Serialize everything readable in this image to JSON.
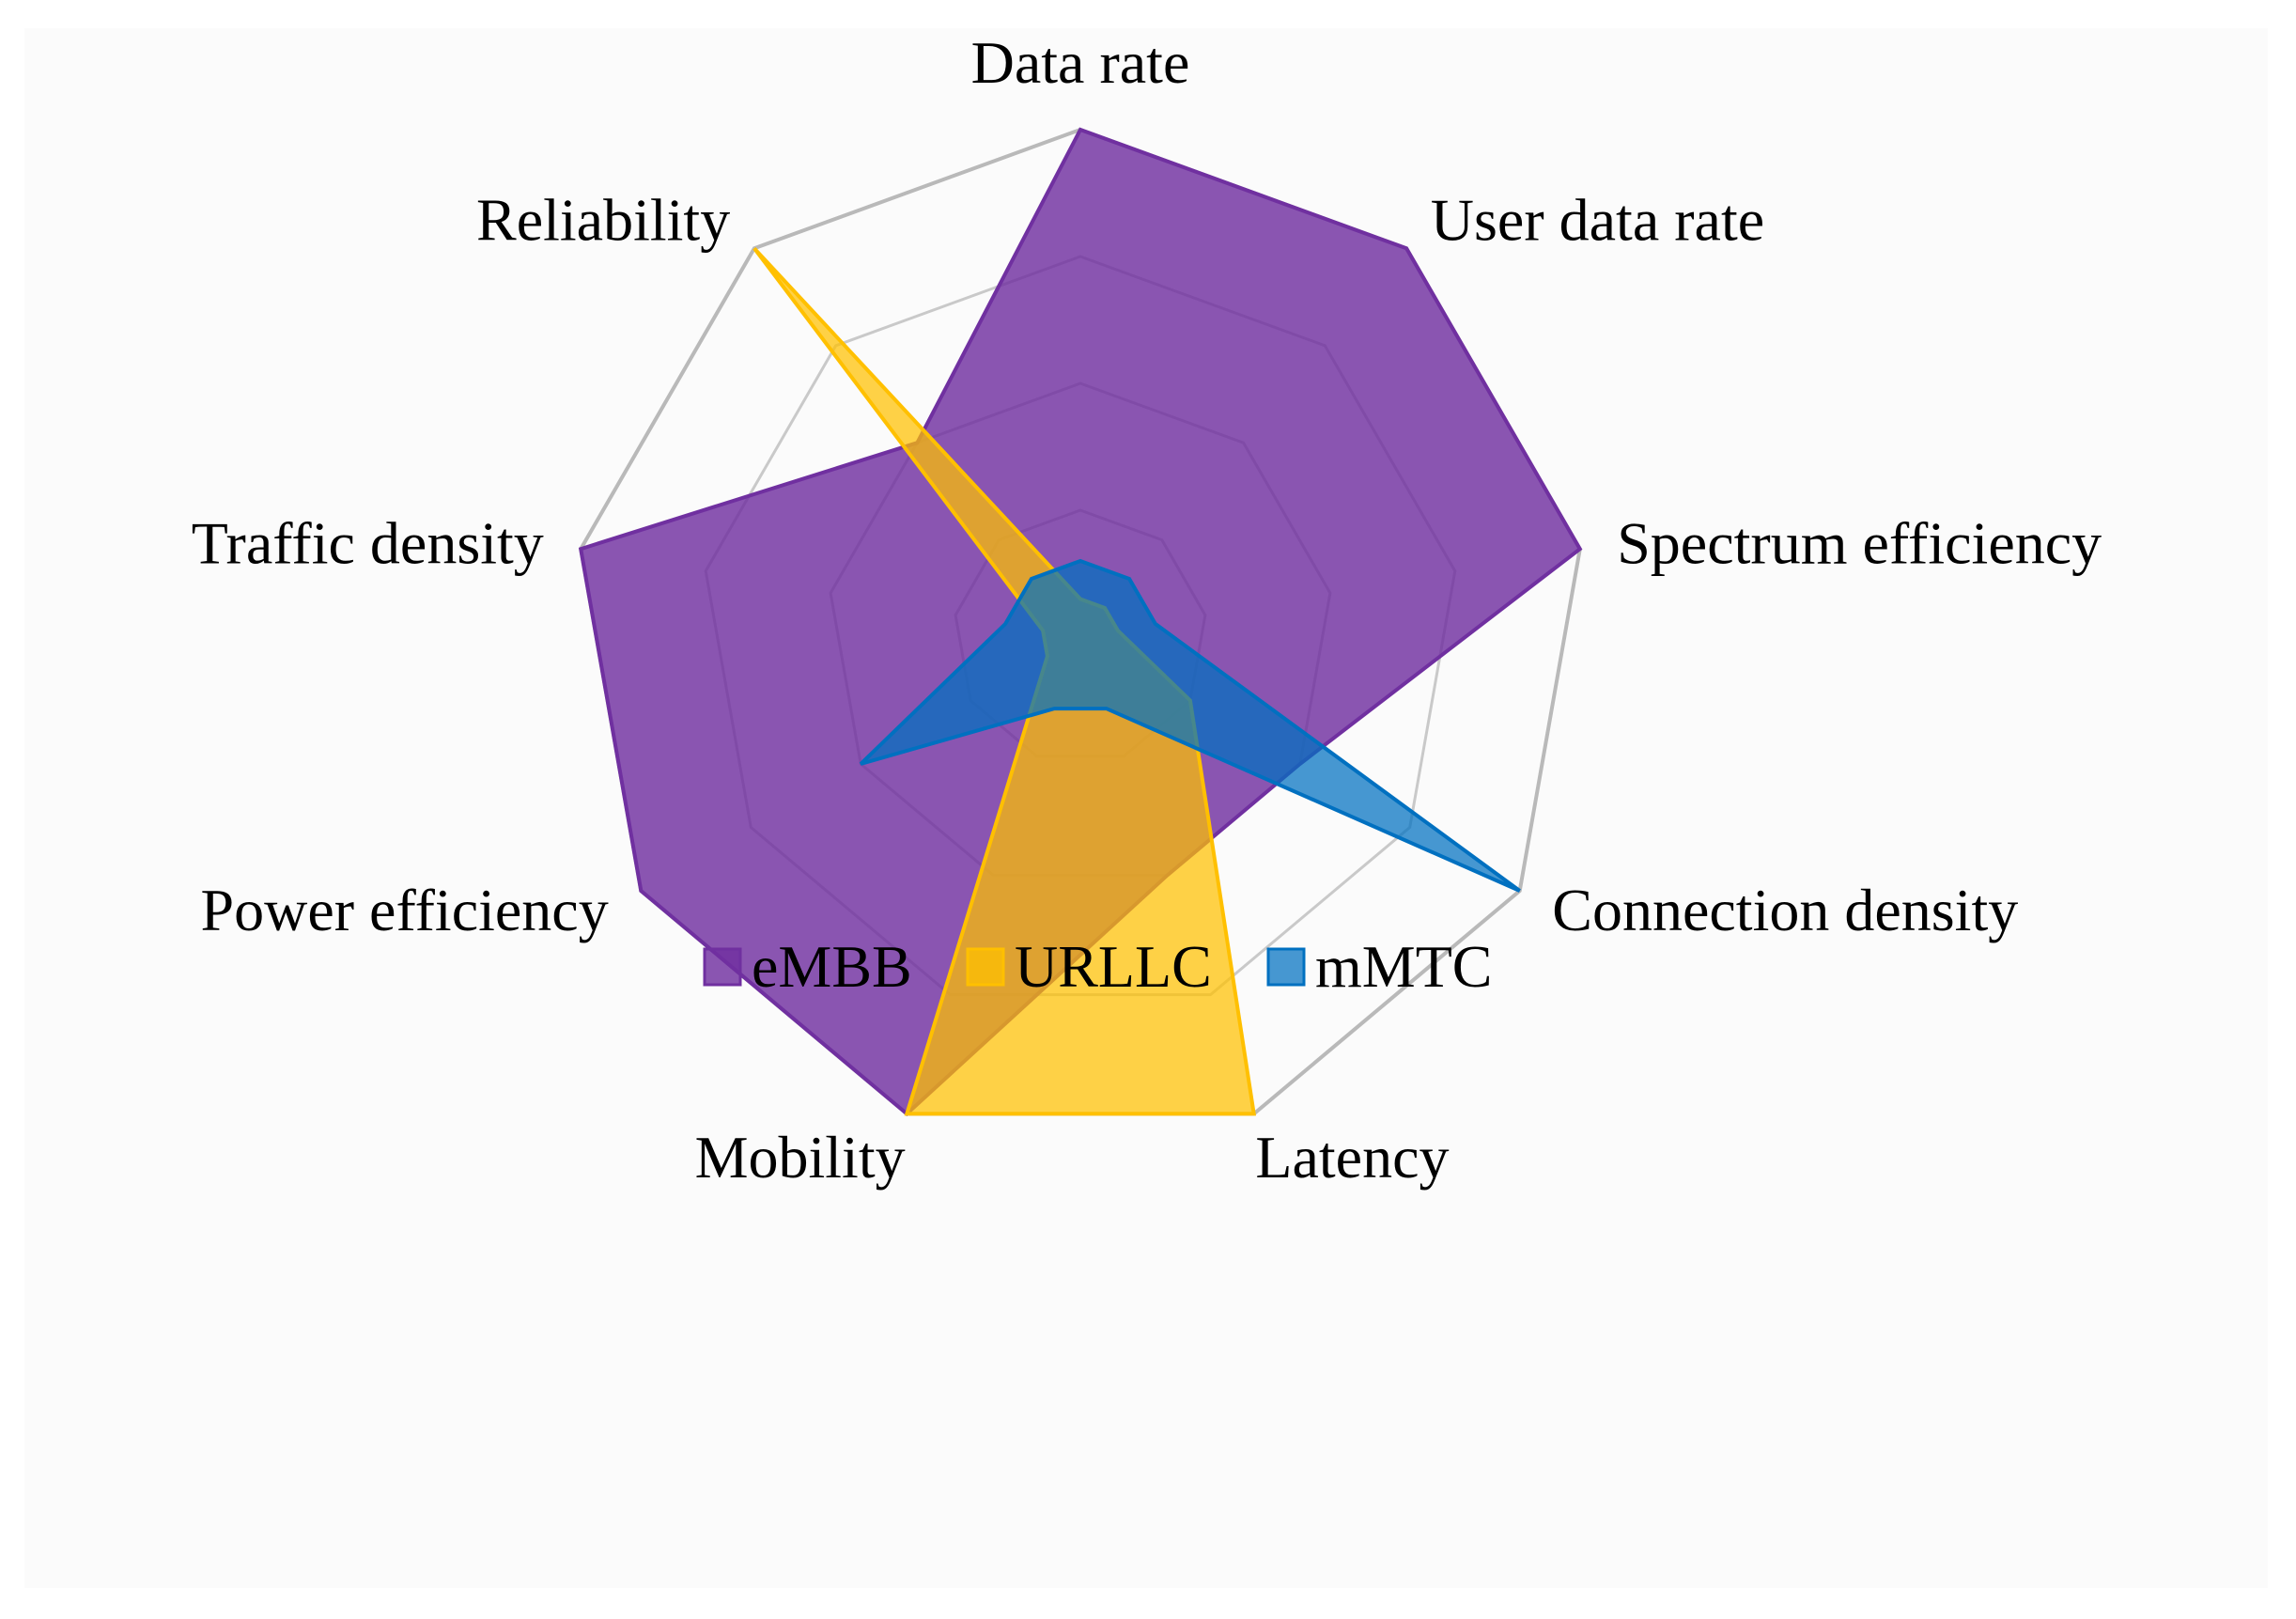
{
  "chart_data": {
    "type": "radar",
    "title": "",
    "categories": [
      "Data rate",
      "User data rate",
      "Spectrum efficiency",
      "Connection density",
      "Latency",
      "Mobility",
      "Power efficiency",
      "Traffic density",
      "Reliability"
    ],
    "rlim": [
      0,
      4
    ],
    "grid_levels": [
      1,
      2,
      3,
      4
    ],
    "grid": true,
    "legend_position": "bottom",
    "series": [
      {
        "name": "eMBB",
        "color": "#7030a0",
        "values": [
          4,
          4,
          4,
          2,
          2,
          4,
          4,
          4,
          2
        ]
      },
      {
        "name": "URLLC",
        "color": "#ffc000",
        "values": [
          0.3,
          0.3,
          0.3,
          1,
          4,
          4,
          0.3,
          0.3,
          4
        ]
      },
      {
        "name": "mMTC",
        "color": "#0070c0",
        "values": [
          0.6,
          0.6,
          0.6,
          4,
          0.6,
          0.6,
          2,
          0.6,
          0.6
        ]
      }
    ]
  }
}
